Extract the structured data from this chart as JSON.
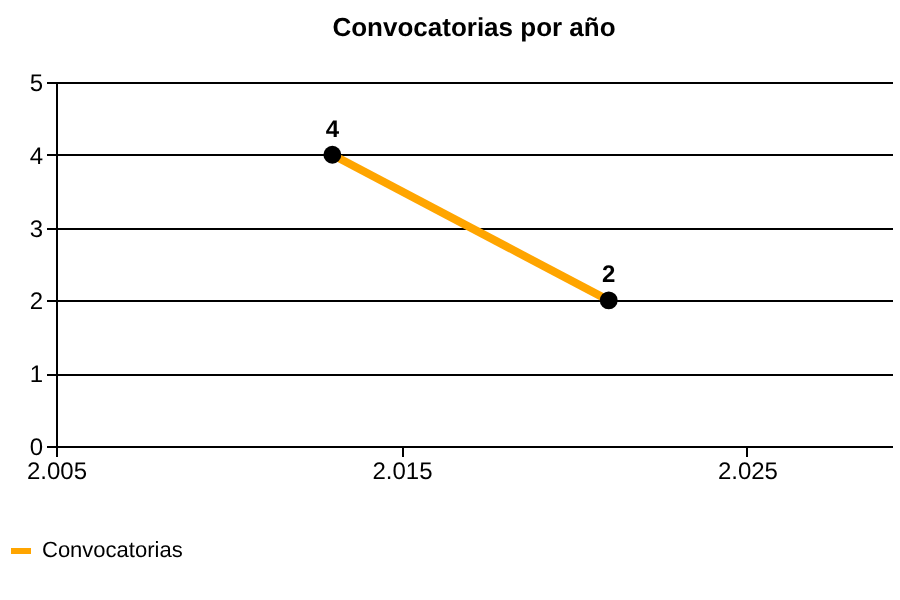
{
  "chart_data": {
    "type": "line",
    "title": "Convocatorias por año",
    "x": [
      2013,
      2021
    ],
    "series": [
      {
        "name": "Convocatorias",
        "color": "#ffa500",
        "values": [
          4,
          2
        ]
      }
    ],
    "xlim": [
      2005,
      2029.2
    ],
    "xticks": [
      {
        "value": 2005,
        "label": "2.005"
      },
      {
        "value": 2015,
        "label": "2.015"
      },
      {
        "value": 2025,
        "label": "2.025"
      }
    ],
    "ylim": [
      0,
      5
    ],
    "yticks": [
      0,
      1,
      2,
      3,
      4,
      5
    ],
    "grid": "y",
    "legend": "bottom left",
    "marker": "circle",
    "line_style": "solid",
    "data_labels": true
  }
}
